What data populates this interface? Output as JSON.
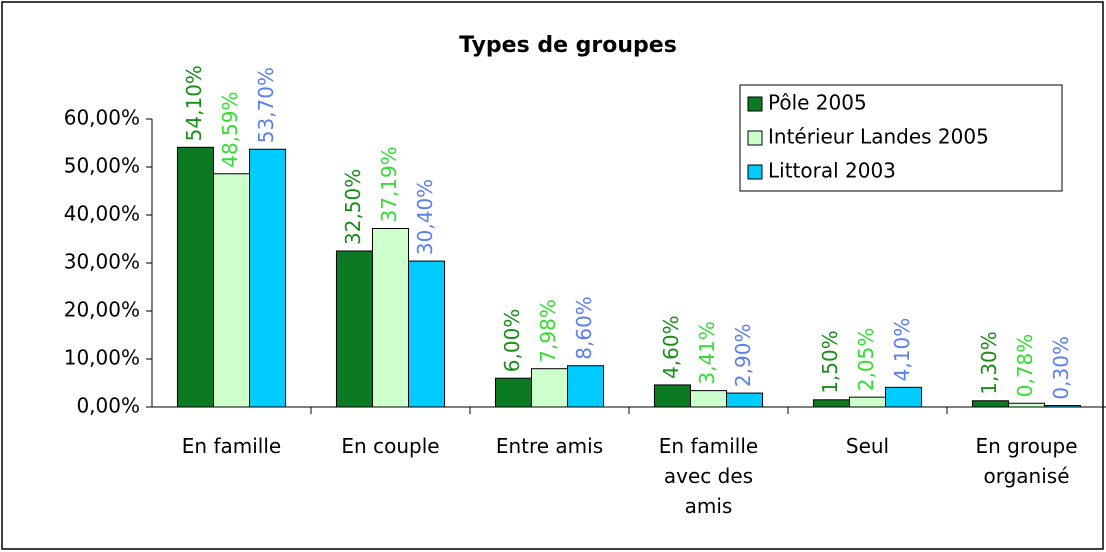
{
  "chart_data": {
    "type": "bar",
    "title": "Types de groupes",
    "categories": [
      "En famille",
      "En couple",
      "Entre amis",
      "En famille avec des amis",
      "Seul",
      "En groupe organisé"
    ],
    "series": [
      {
        "name": "Pôle 2005",
        "color": "#0b7a22",
        "label_color": "#1a8c1a",
        "values": [
          54.1,
          32.5,
          6.0,
          4.6,
          1.5,
          1.3
        ],
        "value_labels": [
          "54,10%",
          "32,50%",
          "6,00%",
          "4,60%",
          "1,50%",
          "1,30%"
        ]
      },
      {
        "name": "Intérieur Landes 2005",
        "color": "#ccffcc",
        "label_color": "#33dd33",
        "values": [
          48.59,
          37.19,
          7.98,
          3.41,
          2.05,
          0.78
        ],
        "value_labels": [
          "48,59%",
          "37,19%",
          "7,98%",
          "3,41%",
          "2,05%",
          "0,78%"
        ]
      },
      {
        "name": "Littoral 2003",
        "color": "#00ccff",
        "label_color": "#5a7ff0",
        "values": [
          53.7,
          30.4,
          8.6,
          2.9,
          4.1,
          0.3
        ],
        "value_labels": [
          "53,70%",
          "30,40%",
          "8,60%",
          "2,90%",
          "4,10%",
          "0,30%"
        ]
      }
    ],
    "ylim": [
      0,
      60
    ],
    "yticks": [
      {
        "value": 0,
        "label": "0,00%"
      },
      {
        "value": 10,
        "label": "10,00%"
      },
      {
        "value": 20,
        "label": "20,00%"
      },
      {
        "value": 30,
        "label": "30,00%"
      },
      {
        "value": 40,
        "label": "40,00%"
      },
      {
        "value": 50,
        "label": "50,00%"
      },
      {
        "value": 60,
        "label": "60,00%"
      }
    ],
    "grid": false,
    "legend": "top-right"
  }
}
